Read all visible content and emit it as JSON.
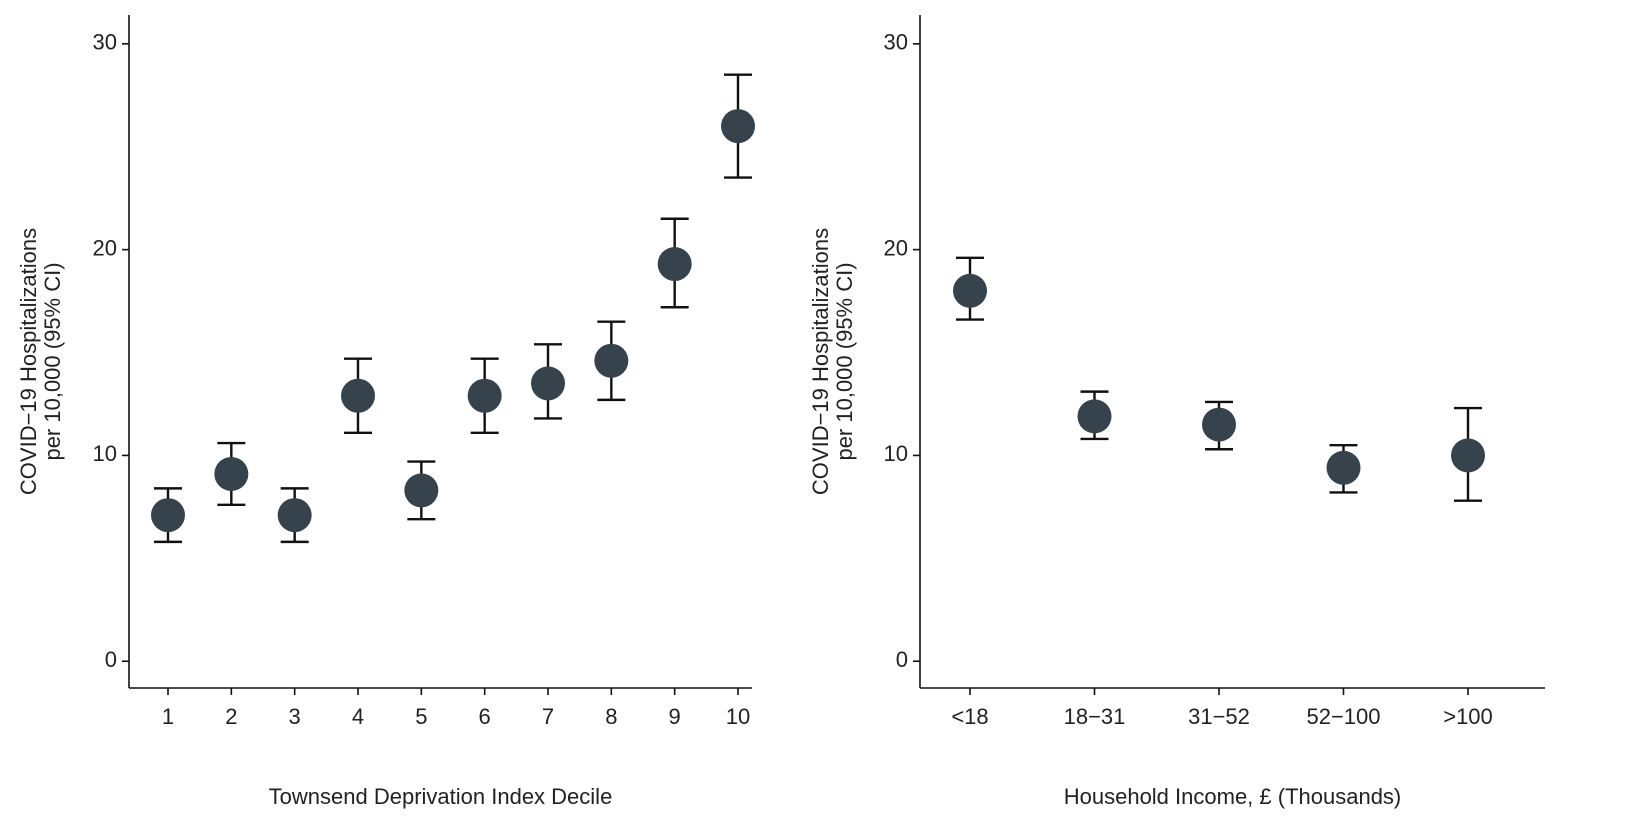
{
  "chart_data": [
    {
      "type": "errorpoint",
      "x_label": "Townsend Deprivation Index Decile",
      "y_label": [
        "COVID−19 Hospitalizations",
        "per 10,000 (95% CI)"
      ],
      "categories": [
        "1",
        "2",
        "3",
        "4",
        "5",
        "6",
        "7",
        "8",
        "9",
        "10"
      ],
      "values": [
        7.1,
        9.1,
        7.1,
        12.9,
        8.3,
        12.9,
        13.5,
        14.6,
        19.3,
        26.0
      ],
      "lower": [
        5.8,
        7.6,
        5.8,
        11.1,
        6.9,
        11.1,
        11.8,
        12.7,
        17.2,
        23.5
      ],
      "upper": [
        8.4,
        10.6,
        8.4,
        14.7,
        9.7,
        14.7,
        15.4,
        16.5,
        21.5,
        28.5
      ],
      "color": "#36434c",
      "ylim": [
        -1.3,
        31.4
      ],
      "yticks": [
        0,
        10,
        20,
        30
      ]
    },
    {
      "type": "errorpoint",
      "x_label": "Household Income, £ (Thousands)",
      "y_label": [
        "COVID−19 Hospitalizations",
        "per 10,000 (95% CI)"
      ],
      "categories": [
        "<18",
        "18−31",
        "31−52",
        "52−100",
        ">100"
      ],
      "values": [
        18.0,
        11.9,
        11.5,
        9.4,
        10.0
      ],
      "lower": [
        16.6,
        10.8,
        10.3,
        8.2,
        7.8
      ],
      "upper": [
        19.6,
        13.1,
        12.6,
        10.5,
        12.3
      ],
      "color": "#36434c",
      "ylim": [
        -1.3,
        31.4
      ],
      "yticks": [
        0,
        10,
        20,
        30
      ]
    }
  ]
}
